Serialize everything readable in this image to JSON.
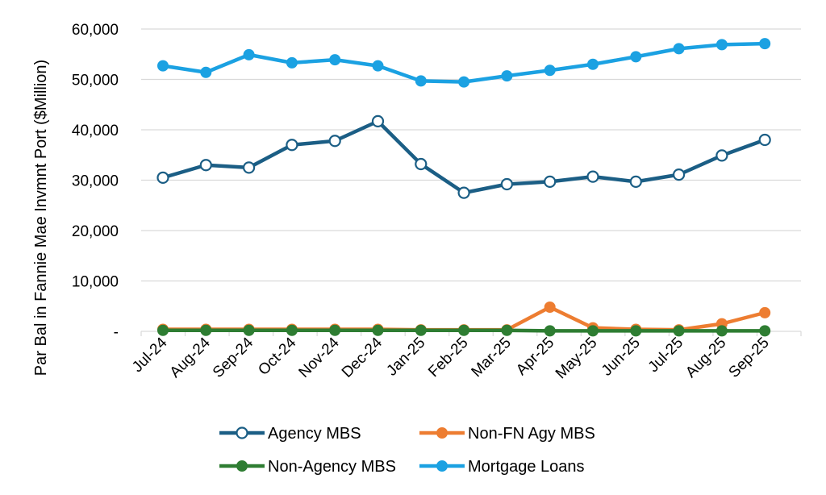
{
  "chart_data": {
    "type": "line",
    "title": "",
    "xlabel": "",
    "ylabel": "Par Bal in Fannie Mae Invmnt Port ($Million)",
    "ylim": [
      0,
      60000
    ],
    "yticks": [
      {
        "value": 0,
        "label": "-"
      },
      {
        "value": 10000,
        "label": "10,000"
      },
      {
        "value": 20000,
        "label": "20,000"
      },
      {
        "value": 30000,
        "label": "30,000"
      },
      {
        "value": 40000,
        "label": "40,000"
      },
      {
        "value": 50000,
        "label": "50,000"
      },
      {
        "value": 60000,
        "label": "60,000"
      }
    ],
    "grid": true,
    "legend_position": "bottom",
    "categories": [
      "Jul-24",
      "Aug-24",
      "Sep-24",
      "Oct-24",
      "Nov-24",
      "Dec-24",
      "Jan-25",
      "Feb-25",
      "Mar-25",
      "Apr-25",
      "May-25",
      "Jun-25",
      "Jul-25",
      "Aug-25",
      "Sep-25"
    ],
    "series": [
      {
        "name": "Agency MBS",
        "key": "agency-mbs",
        "color": "#1b5e85",
        "marker": "hollow",
        "values": [
          30500,
          33000,
          32500,
          37000,
          37800,
          41700,
          33200,
          27500,
          29200,
          29700,
          30700,
          29700,
          31100,
          34900,
          38000
        ]
      },
      {
        "name": "Non-FN Agy MBS",
        "key": "non-fn-agy-mbs",
        "color": "#ed7d31",
        "marker": "filled",
        "values": [
          400,
          400,
          400,
          400,
          400,
          400,
          300,
          300,
          300,
          4800,
          700,
          400,
          300,
          1500,
          3700
        ]
      },
      {
        "name": "Non-Agency MBS",
        "key": "non-agency-mbs",
        "color": "#2e7d32",
        "marker": "filled",
        "values": [
          200,
          200,
          200,
          200,
          200,
          200,
          200,
          200,
          200,
          100,
          100,
          100,
          100,
          100,
          100
        ]
      },
      {
        "name": "Mortgage Loans",
        "key": "mortgage-loans",
        "color": "#1ba1e2",
        "marker": "filled",
        "values": [
          52700,
          51400,
          54900,
          53300,
          53900,
          52700,
          49700,
          49500,
          50700,
          51800,
          53000,
          54500,
          56100,
          56900,
          57100
        ]
      }
    ]
  }
}
